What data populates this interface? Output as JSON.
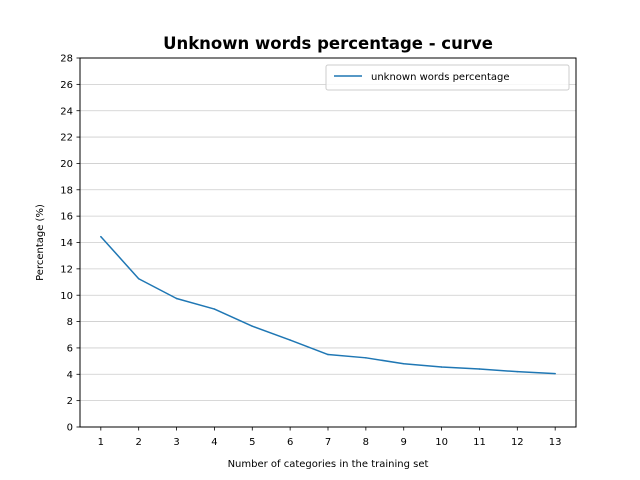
{
  "chart_data": {
    "type": "line",
    "title": "Unknown words percentage - curve",
    "xlabel": "Number of categories in the training set",
    "ylabel": "Percentage (%)",
    "x": [
      1,
      2,
      3,
      4,
      5,
      6,
      7,
      8,
      9,
      10,
      11,
      12,
      13
    ],
    "xticks": [
      "1",
      "2",
      "3",
      "4",
      "5",
      "6",
      "7",
      "8",
      "9",
      "10",
      "11",
      "12",
      "13"
    ],
    "yticks": [
      "0",
      "2",
      "4",
      "6",
      "8",
      "10",
      "12",
      "14",
      "16",
      "18",
      "20",
      "22",
      "24",
      "26",
      "28"
    ],
    "ylim": [
      0,
      28
    ],
    "xlim": [
      0.45,
      13.55
    ],
    "grid": "horizontal",
    "legend_position": "top-right",
    "series": [
      {
        "name": "unknown words percentage",
        "color": "#1f77b4",
        "values": [
          14.45,
          11.25,
          9.75,
          8.95,
          7.65,
          6.6,
          5.5,
          5.25,
          4.8,
          4.55,
          4.4,
          4.2,
          4.05
        ]
      }
    ]
  }
}
